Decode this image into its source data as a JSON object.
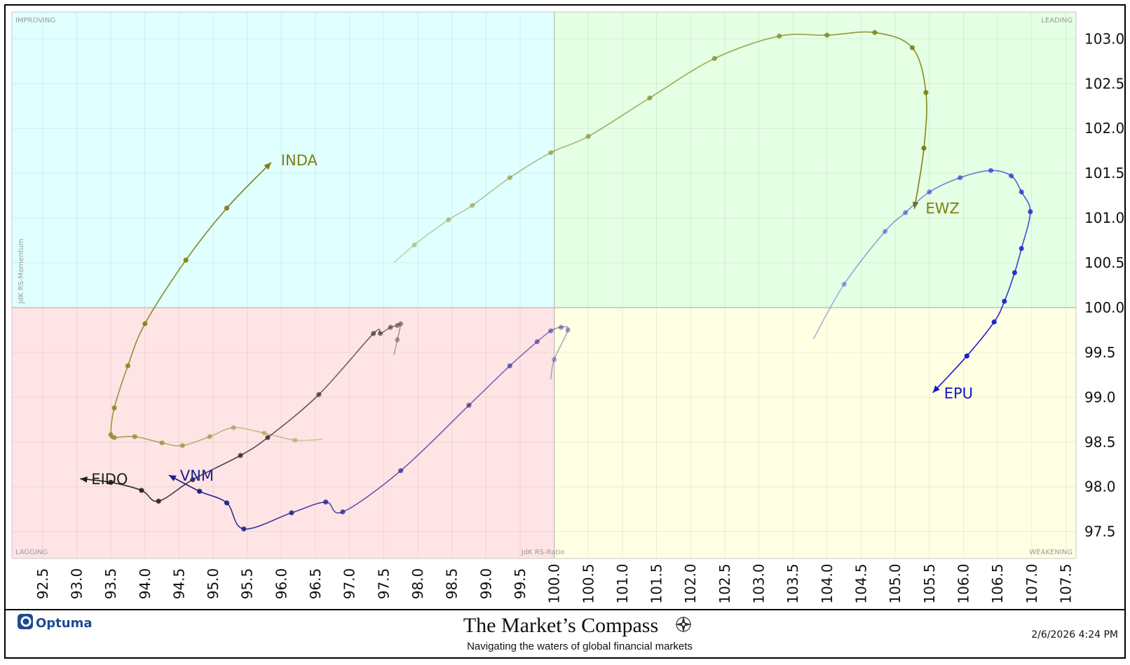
{
  "chart_data": {
    "type": "scatter",
    "subtype": "relative-rotation-graph",
    "xlabel": "JdK RS-Ratio",
    "ylabel": "JdK RS-Momentum",
    "xlim": [
      92.05,
      107.65
    ],
    "ylim": [
      97.2,
      103.3
    ],
    "x_ticks": [
      "92.5",
      "93.0",
      "93.5",
      "94.0",
      "94.5",
      "95.0",
      "95.5",
      "96.0",
      "96.5",
      "97.0",
      "97.5",
      "98.0",
      "98.5",
      "99.0",
      "99.5",
      "100.0",
      "100.5",
      "101.0",
      "101.5",
      "102.0",
      "102.5",
      "103.0",
      "103.5",
      "104.0",
      "104.5",
      "105.0",
      "105.5",
      "106.0",
      "106.5",
      "107.0",
      "107.5"
    ],
    "y_ticks": [
      "97.5",
      "98.0",
      "98.5",
      "99.0",
      "99.5",
      "100.0",
      "100.5",
      "101.0",
      "101.5",
      "102.0",
      "102.5",
      "103.0"
    ],
    "quadrants": [
      {
        "name": "IMPROVING",
        "color": "#e0ffff"
      },
      {
        "name": "LEADING",
        "color": "#e4ffe4"
      },
      {
        "name": "LAGGING",
        "color": "#ffe4e6"
      },
      {
        "name": "WEAKENING",
        "color": "#ffffe4"
      }
    ],
    "series": [
      {
        "name": "EWZ",
        "color": "#7f7f10",
        "x": [
          97.65,
          97.95,
          98.45,
          98.8,
          99.35,
          99.95,
          100.5,
          101.4,
          102.35,
          103.3,
          104.0,
          104.7,
          105.25,
          105.45,
          105.42,
          105.28
        ],
        "y": [
          100.5,
          100.7,
          100.98,
          101.14,
          101.45,
          101.73,
          101.91,
          102.34,
          102.78,
          103.03,
          103.04,
          103.07,
          102.9,
          102.4,
          101.78,
          101.1
        ]
      },
      {
        "name": "EPU",
        "color": "#1515cc",
        "x": [
          103.8,
          104.25,
          104.85,
          105.15,
          105.5,
          105.95,
          106.4,
          106.7,
          106.85,
          106.98,
          106.85,
          106.75,
          106.6,
          106.45,
          106.05,
          105.55
        ],
        "y": [
          99.65,
          100.26,
          100.85,
          101.06,
          101.29,
          101.45,
          101.53,
          101.47,
          101.29,
          101.07,
          100.66,
          100.39,
          100.07,
          99.84,
          99.46,
          99.05
        ]
      },
      {
        "name": "INDA",
        "color": "#7f7f10",
        "x": [
          96.6,
          96.2,
          95.75,
          95.3,
          94.95,
          94.55,
          94.25,
          93.85,
          93.55,
          93.5,
          93.55,
          93.75,
          94.0,
          94.6,
          95.2,
          95.85
        ],
        "y": [
          98.53,
          98.52,
          98.6,
          98.66,
          98.56,
          98.46,
          98.49,
          98.56,
          98.55,
          98.58,
          98.88,
          99.35,
          99.82,
          100.53,
          101.11,
          101.62
        ]
      },
      {
        "name": "EIDO",
        "color": "#202020",
        "x": [
          97.65,
          97.7,
          97.75,
          97.7,
          97.6,
          97.45,
          97.35,
          96.55,
          95.8,
          95.4,
          94.7,
          94.2,
          93.95,
          93.5,
          93.05
        ],
        "y": [
          99.47,
          99.64,
          99.82,
          99.8,
          99.78,
          99.71,
          99.71,
          99.03,
          98.55,
          98.35,
          98.08,
          97.84,
          97.96,
          98.05,
          98.09
        ]
      },
      {
        "name": "VNM",
        "color": "#1e1e8c",
        "x": [
          99.95,
          100.0,
          100.2,
          100.1,
          99.95,
          99.75,
          99.35,
          98.75,
          97.75,
          96.9,
          96.65,
          96.15,
          95.45,
          95.2,
          94.8,
          94.35
        ],
        "y": [
          99.2,
          99.42,
          99.75,
          99.78,
          99.74,
          99.62,
          99.35,
          98.91,
          98.18,
          97.72,
          97.83,
          97.71,
          97.53,
          97.82,
          97.95,
          98.13
        ]
      }
    ]
  },
  "footer": {
    "brand": "Optuma",
    "title": "The Market’s Compass",
    "subtitle": "Navigating the waters of global financial markets",
    "timestamp": "2/6/2026 4:24 PM"
  }
}
